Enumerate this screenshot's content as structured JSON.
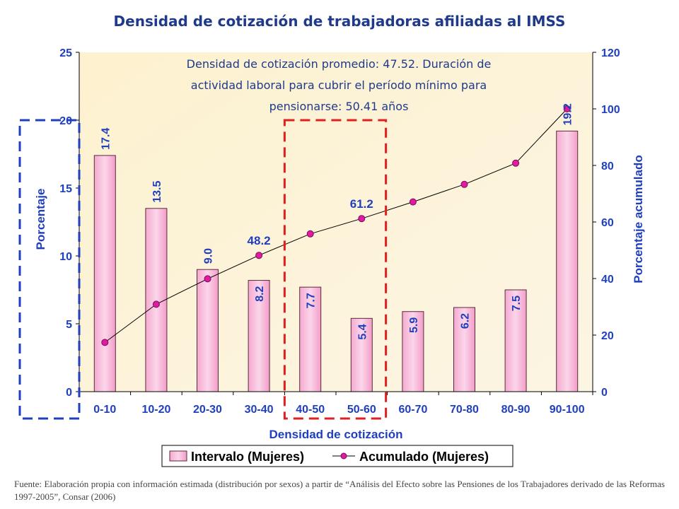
{
  "chart_data": {
    "type": "bar",
    "title": "Densidad de cotización de trabajadoras afiliadas al IMSS",
    "annotation": "Densidad de cotización promedio: 47.52. Duración de actividad laboral para cubrir el período mínimo para pensionarse: 50.41 años",
    "xlabel": "Densidad de cotización",
    "ylabel": "Porcentaje",
    "y2label": "Porcentaje acumulado",
    "categories": [
      "0-10",
      "10-20",
      "20-30",
      "30-40",
      "40-50",
      "50-60",
      "60-70",
      "70-80",
      "80-90",
      "90-100"
    ],
    "ylim": [
      0,
      25
    ],
    "yticks": [
      0,
      5,
      10,
      15,
      20,
      25
    ],
    "y2lim": [
      0,
      120
    ],
    "y2ticks": [
      0,
      20,
      40,
      60,
      80,
      100,
      120
    ],
    "series": [
      {
        "name": "Intervalo (Mujeres)",
        "kind": "bar",
        "axis": "left",
        "values": [
          17.4,
          13.5,
          9.0,
          8.2,
          7.7,
          5.4,
          5.9,
          6.2,
          7.5,
          19.2
        ],
        "labels": [
          "17.4",
          "13.5",
          "9.0",
          "8.2",
          "7.7",
          "5.4",
          "5.9",
          "6.2",
          "7.5",
          "19.2"
        ]
      },
      {
        "name": "Acumulado (Mujeres)",
        "kind": "line",
        "axis": "right",
        "values": [
          17.4,
          30.9,
          39.9,
          48.2,
          55.8,
          61.2,
          67.1,
          73.3,
          80.8,
          100.0
        ],
        "labeled_points": [
          {
            "index": 3,
            "label": "48.2"
          },
          {
            "index": 5,
            "label": "61.2"
          }
        ]
      }
    ],
    "legend_position": "bottom",
    "grid": false,
    "highlight_boxes": [
      {
        "color": "#1f3fbf",
        "from_category": "0-10",
        "to_category": "40-50"
      },
      {
        "color": "#e02020",
        "from_category": "40-50",
        "to_category": "50-60"
      }
    ],
    "colors": {
      "title": "#1f3a8a",
      "axis_labels": "#1f3fbf",
      "bar_fill": "#f7c0dc",
      "bar_stroke": "#5a2a3c",
      "line_stroke": "#000000",
      "marker_fill": "#e01ba0",
      "plot_bg": "#fdf4d6"
    }
  },
  "source_note": "Fuente: Elaboración propia con información estimada (distribución por sexos) a partir de “Análisis del Efecto sobre las Pensiones de los Trabajadores derivado de las Reformas 1997-2005”, Consar (2006)"
}
